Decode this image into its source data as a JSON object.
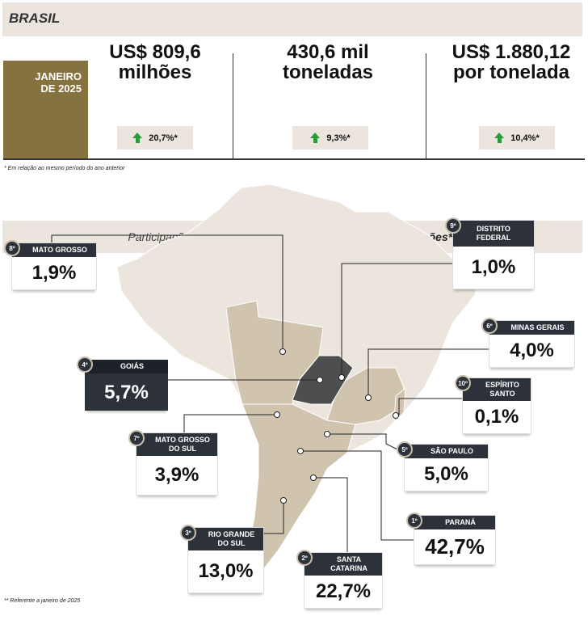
{
  "header": {
    "title": "BRASIL"
  },
  "period": {
    "line1": "JANEIRO",
    "line2": "DE 2025"
  },
  "kpis": [
    {
      "line1": "US$ 809,6",
      "line2": "milhões",
      "change": "20,7%*"
    },
    {
      "line1": "430,6 mil",
      "line2": "toneladas",
      "change": "9,3%*"
    },
    {
      "line1": "US$ 1.880,12",
      "line2": "por tonelada",
      "change": "10,4%*"
    }
  ],
  "note1": "* Em relação ao mesmo período do ano anterior",
  "section": {
    "title_regular": "Participação dos Principais Estados no ",
    "title_bold": "Valor das Exportações**"
  },
  "states": [
    {
      "rank": "8º",
      "name": "MATO GROSSO",
      "value": "1,9%"
    },
    {
      "rank": "9º",
      "name": "DISTRITO FEDERAL",
      "value": "1,0%"
    },
    {
      "rank": "6º",
      "name": "MINAS GERAIS",
      "value": "4,0%"
    },
    {
      "rank": "4º",
      "name": "GOIÁS",
      "value": "5,7%"
    },
    {
      "rank": "10º",
      "name": "ESPÍRITO SANTO",
      "value": "0,1%"
    },
    {
      "rank": "7º",
      "name": "MATO GROSSO DO SUL",
      "value": "3,9%"
    },
    {
      "rank": "5º",
      "name": "SÃO PAULO",
      "value": "5,0%"
    },
    {
      "rank": "1º",
      "name": "PARANÁ",
      "value": "42,7%"
    },
    {
      "rank": "3º",
      "name": "RIO GRANDE DO SUL",
      "value": "13,0%"
    },
    {
      "rank": "2º",
      "name": "SANTA CATARINA",
      "value": "22,7%"
    }
  ],
  "note2": "** Referente a janeiro de 2025",
  "colors": {
    "brand": "#85723f",
    "dark": "#2d323a",
    "beige": "#ebe5dd",
    "up": "#2a9a3a"
  }
}
